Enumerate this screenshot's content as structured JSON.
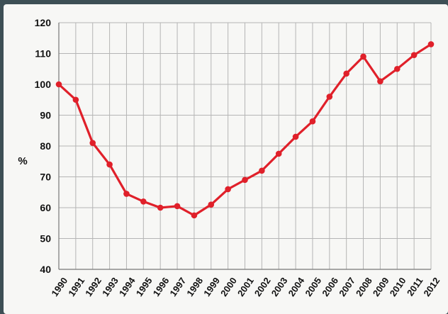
{
  "chart_data": {
    "type": "line",
    "title": "",
    "xlabel": "",
    "ylabel": "%",
    "ylim": [
      40,
      120
    ],
    "yticks": [
      40,
      50,
      60,
      70,
      80,
      90,
      100,
      110,
      120
    ],
    "grid": true,
    "legend": "none",
    "x": [
      "1990",
      "1991",
      "1992",
      "1993",
      "1994",
      "1995",
      "1996",
      "1997",
      "1998",
      "1999",
      "2000",
      "2001",
      "2002",
      "2003",
      "2004",
      "2005",
      "2006",
      "2007",
      "2008",
      "2009",
      "2010",
      "2011",
      "2012"
    ],
    "series": [
      {
        "color": "#e0202a",
        "values": [
          100,
          95,
          81,
          74,
          64.5,
          62,
          60,
          60.5,
          57.5,
          61,
          66,
          69,
          72,
          77.5,
          83,
          88,
          96,
          103.5,
          109,
          101,
          105,
          109.5,
          113
        ]
      }
    ]
  },
  "colors": {
    "background": "#3d4f55",
    "panel": "#f7f7f5",
    "grid": "#b5b5b5",
    "line": "#e0202a"
  }
}
